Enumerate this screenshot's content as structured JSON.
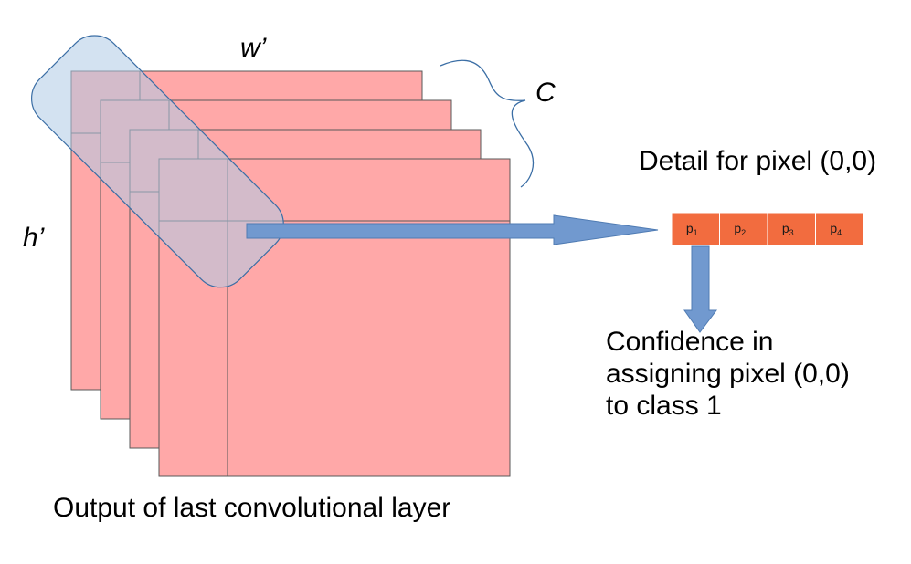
{
  "labels": {
    "width": "w’",
    "height": "h’",
    "channels": "C",
    "caption": "Output of last convolutional layer",
    "detail_title": "Detail for pixel (0,0)",
    "confidence": "Confidence in\nassigning pixel (0,0)\nto class 1"
  },
  "vector": {
    "cells": [
      {
        "base": "p",
        "sub": "1"
      },
      {
        "base": "p",
        "sub": "2"
      },
      {
        "base": "p",
        "sub": "3"
      },
      {
        "base": "p",
        "sub": "4"
      }
    ]
  },
  "colors": {
    "layer_fill": "#ffa8a8",
    "layer_stroke": "#595959",
    "highlight_fill": "#aecbe6",
    "highlight_stroke": "#3b6ea5",
    "arrow_fill": "#7199cf",
    "arrow_stroke": "#4f7bb3",
    "cell_fill": "#f26c3f",
    "cell_stroke": "#ffffff",
    "brace": "#3b6ea5"
  }
}
